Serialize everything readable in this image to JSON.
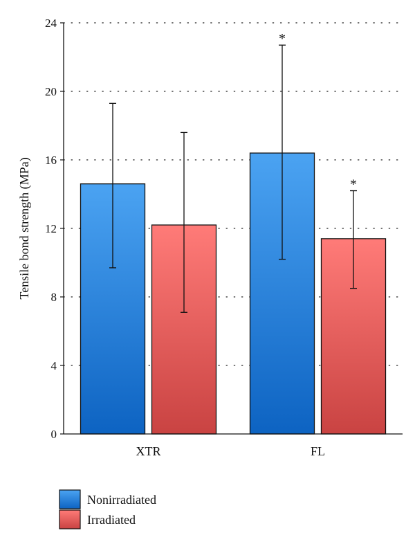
{
  "chart_data": {
    "type": "bar",
    "title": "",
    "xlabel": "",
    "ylabel": "Tensile bond strength (MPa)",
    "ylim": [
      0,
      24
    ],
    "yticks": [
      0,
      4,
      8,
      12,
      16,
      20,
      24
    ],
    "grid": "horizontal-dotted",
    "legend_position": "bottom-left",
    "categories": [
      "XTR",
      "FL"
    ],
    "series": [
      {
        "name": "Nonirradiated",
        "color": "#2f86dd",
        "values": [
          14.6,
          16.4
        ],
        "error_low": [
          9.7,
          10.2
        ],
        "error_high": [
          19.3,
          22.7
        ],
        "annotations": [
          "",
          "*"
        ]
      },
      {
        "name": "Irradiated",
        "color": "#e05858",
        "values": [
          12.2,
          11.4
        ],
        "error_low": [
          7.1,
          8.5
        ],
        "error_high": [
          17.6,
          14.2
        ],
        "annotations": [
          "",
          "*"
        ]
      }
    ]
  }
}
